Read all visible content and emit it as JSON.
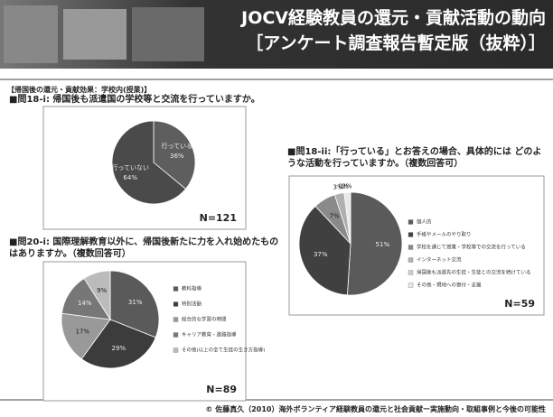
{
  "header": {
    "title": "JOCV経験教員の還元・貢献活動の動向",
    "subtitle": "［アンケート調査報告暫定版（抜粋）］"
  },
  "section": "【帰国後の還元・貢献効果：学校内(授業)】",
  "chart_data": [
    {
      "type": "pie",
      "title": "■問18-i: 帰国後も派遣国の学校等と交流を行っていますか。",
      "categories": [
        "行っている",
        "行っていない"
      ],
      "values": [
        36,
        64
      ],
      "value_labels": [
        "36%",
        "64%"
      ],
      "colors": [
        "#5e5e5e",
        "#4a4a4a"
      ],
      "legend": false,
      "n_label": "N=121"
    },
    {
      "type": "pie",
      "title": "■問18-ii:「行っている」とお答えの場合、具体的には どのような活動を行っていますか。（複数回答可）",
      "categories": [
        "個人的",
        "手紙やメールのやり取り",
        "学校を通じて授業・学校等での交流を行っている",
        "インターネット交流",
        "帰国後も派遣先の生徒・生徒との交流を続けている",
        "その他・現地への寄付・支援"
      ],
      "values": [
        51,
        37,
        7,
        3,
        0,
        2
      ],
      "value_labels": [
        "51%",
        "37%",
        "7%",
        "3%",
        "0%",
        "2%"
      ],
      "colors": [
        "#5a5a5a",
        "#404040",
        "#8a8a8a",
        "#b0b0b0",
        "#d0d0d0",
        "#e8e8e8"
      ],
      "legend": true,
      "n_label": "N=59"
    },
    {
      "type": "pie",
      "title": "■問20-i: 国際理解教育以外に、帰国後新たに力を入れ始めたものはありますか。（複数回答可）",
      "categories": [
        "教科指導",
        "特別活動",
        "総合的な学習の時間",
        "キャリア教育・進路指導",
        "その他(以上の全て生徒の生き方指導)"
      ],
      "values": [
        31,
        29,
        17,
        14,
        9
      ],
      "value_labels": [
        "31%",
        "29%",
        "17%",
        "14%",
        "9%"
      ],
      "colors": [
        "#5a5a5a",
        "#3c3c3c",
        "#999999",
        "#777777",
        "#bbbbbb"
      ],
      "legend": true,
      "n_label": "N=89"
    }
  ],
  "footer": "© 佐藤真久（2010）海外ボランティア経験教員の還元と社会貢献ー実施動向・取組事例と今後の可能性"
}
